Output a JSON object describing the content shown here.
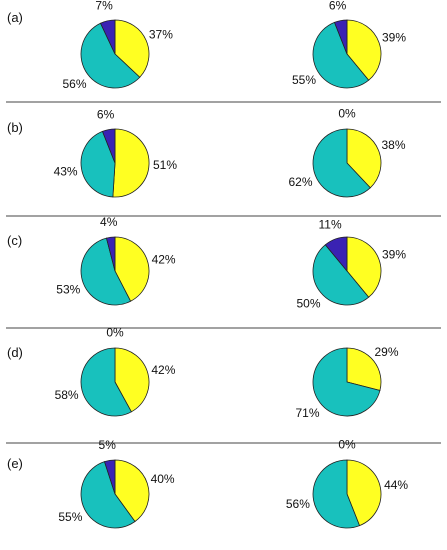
{
  "colors": {
    "yellow": "#ffff22",
    "teal": "#18c1bd",
    "navy": "#3a22b3",
    "outline": "#222222",
    "divider": "#444444"
  },
  "chart_data": [
    {
      "type": "pie",
      "panel": "(a)",
      "pies": [
        {
          "slices": [
            {
              "value": 37,
              "label": "37%",
              "color": "yellow"
            },
            {
              "value": 56,
              "label": "56%",
              "color": "teal"
            },
            {
              "value": 7,
              "label": "7%",
              "color": "navy"
            }
          ]
        },
        {
          "slices": [
            {
              "value": 39,
              "label": "39%",
              "color": "yellow"
            },
            {
              "value": 55,
              "label": "55%",
              "color": "teal"
            },
            {
              "value": 6,
              "label": "6%",
              "color": "navy"
            }
          ]
        }
      ]
    },
    {
      "type": "pie",
      "panel": "(b)",
      "pies": [
        {
          "slices": [
            {
              "value": 51,
              "label": "51%",
              "color": "yellow"
            },
            {
              "value": 43,
              "label": "43%",
              "color": "teal"
            },
            {
              "value": 6,
              "label": "6%",
              "color": "navy"
            }
          ]
        },
        {
          "slices": [
            {
              "value": 38,
              "label": "38%",
              "color": "yellow"
            },
            {
              "value": 62,
              "label": "62%",
              "color": "teal"
            },
            {
              "value": 0,
              "label": "0%",
              "color": "navy"
            }
          ]
        }
      ]
    },
    {
      "type": "pie",
      "panel": "(c)",
      "pies": [
        {
          "slices": [
            {
              "value": 42,
              "label": "42%",
              "color": "yellow"
            },
            {
              "value": 53,
              "label": "53%",
              "color": "teal"
            },
            {
              "value": 4,
              "label": "4%",
              "color": "navy"
            }
          ]
        },
        {
          "slices": [
            {
              "value": 39,
              "label": "39%",
              "color": "yellow"
            },
            {
              "value": 50,
              "label": "50%",
              "color": "teal"
            },
            {
              "value": 11,
              "label": "11%",
              "color": "navy"
            }
          ]
        }
      ]
    },
    {
      "type": "pie",
      "panel": "(d)",
      "pies": [
        {
          "slices": [
            {
              "value": 42,
              "label": "42%",
              "color": "yellow"
            },
            {
              "value": 58,
              "label": "58%",
              "color": "teal"
            },
            {
              "value": 0,
              "label": "0%",
              "color": "navy"
            }
          ]
        },
        {
          "slices": [
            {
              "value": 29,
              "label": "29%",
              "color": "yellow"
            },
            {
              "value": 71,
              "label": "71%",
              "color": "teal"
            },
            {
              "value": 0,
              "label": "",
              "color": "navy"
            }
          ]
        }
      ]
    },
    {
      "type": "pie",
      "panel": "(e)",
      "pies": [
        {
          "slices": [
            {
              "value": 40,
              "label": "40%",
              "color": "yellow"
            },
            {
              "value": 55,
              "label": "55%",
              "color": "teal"
            },
            {
              "value": 5,
              "label": "5%",
              "color": "navy"
            }
          ]
        },
        {
          "slices": [
            {
              "value": 44,
              "label": "44%",
              "color": "yellow"
            },
            {
              "value": 56,
              "label": "56%",
              "color": "teal"
            },
            {
              "value": 0,
              "label": "0%",
              "color": "navy"
            }
          ]
        }
      ]
    }
  ]
}
